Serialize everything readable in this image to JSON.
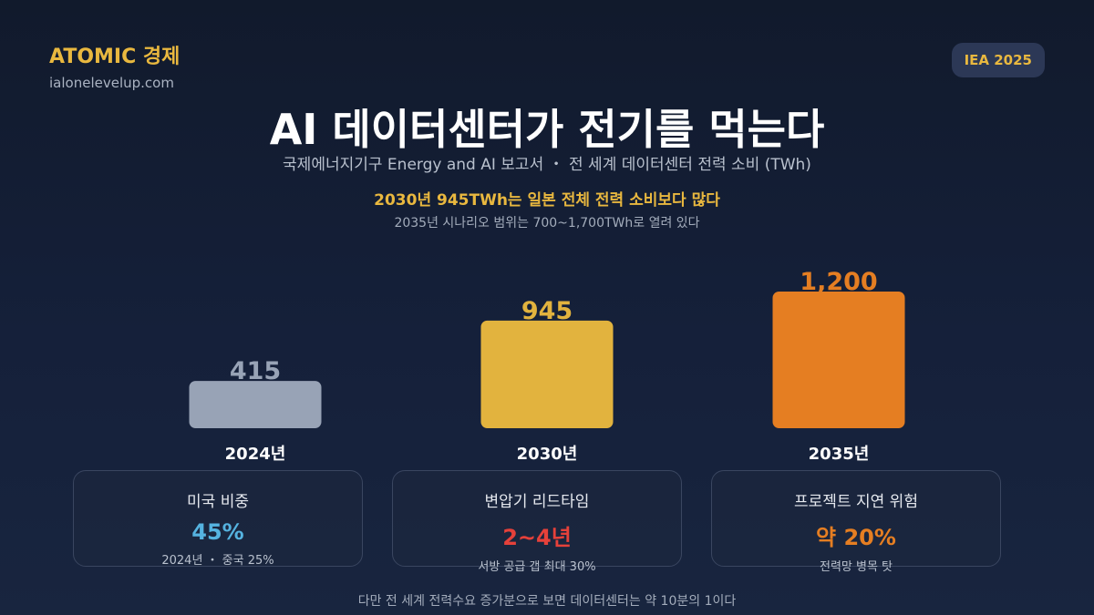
{
  "brand": {
    "name": "ATOMIC 경제",
    "url": "ialonelevelup.com"
  },
  "badge": "IEA 2025",
  "title": "AI 데이터센터가 전기를 먹는다",
  "subtitle": "국제에너지기구 Energy and AI 보고서 ・ 전 세계 데이터센터 전력 소비 (TWh)",
  "highlight": "2030년 945TWh는 일본 전체 전력 소비보다 많다",
  "note": "2035년 시나리오 범위는 700~1,700TWh로 열려 있다",
  "chart_data": {
    "type": "bar",
    "title": "AI 데이터센터가 전기를 먹는다",
    "ylabel": "",
    "categories": [
      "2024년",
      "2030년",
      "2035년"
    ],
    "values": [
      415,
      945,
      1200
    ],
    "value_labels": [
      "415",
      "945",
      "1,200"
    ],
    "colors": [
      "#98a3b6",
      "#e2b33e",
      "#e57e22"
    ],
    "ylim": [
      0,
      1200
    ],
    "grid": false
  },
  "cards": [
    {
      "title": "미국 비중",
      "value": "45%",
      "sub": "2024년 ・ 중국 25%",
      "color": "#55b3e0"
    },
    {
      "title": "변압기 리드타임",
      "value": "2~4년",
      "sub": "서방 공급 갭 최대 30%",
      "color": "#e6413a"
    },
    {
      "title": "프로젝트 지연 위험",
      "value": "약 20%",
      "sub": "전력망 병목 탓",
      "color": "#e57e22"
    }
  ],
  "footer": "다만 전 세계 전력수요 증가분으로 보면 데이터센터는 약 10분의 1이다"
}
